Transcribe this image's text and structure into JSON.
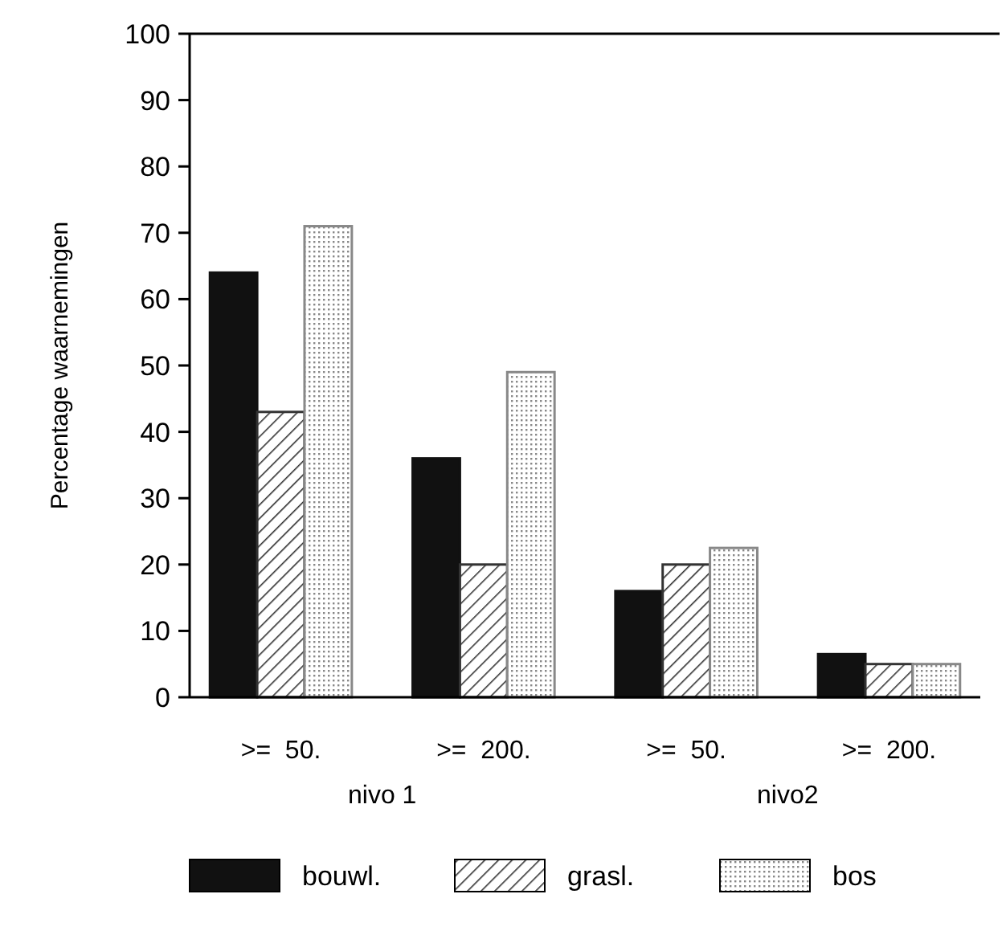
{
  "chart_data": {
    "type": "bar",
    "ylabel": "Percentage waarnemingen",
    "categories": [
      ">=  50.",
      ">=  200.",
      ">=  50.",
      ">=  200."
    ],
    "series": [
      {
        "name": "bouwl.",
        "color": "#111111",
        "values": [
          64,
          36,
          16,
          6.5
        ]
      },
      {
        "name": "grasl.",
        "color": "#333333",
        "values": [
          43,
          20,
          20,
          5
        ]
      },
      {
        "name": "bos",
        "color": "#888888",
        "values": [
          71,
          49,
          22.5,
          5
        ]
      }
    ],
    "ylim": [
      0,
      100
    ],
    "yticks": [
      0,
      10,
      20,
      30,
      40,
      50,
      60,
      70,
      80,
      90,
      100
    ],
    "legend": "bottom",
    "grid": false,
    "annotations": [
      "nivo 1",
      "nivo2"
    ]
  }
}
